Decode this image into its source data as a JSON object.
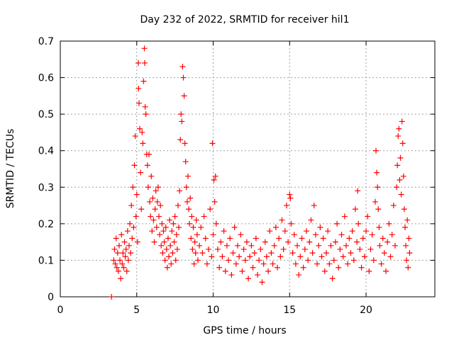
{
  "chart_data": {
    "type": "scatter",
    "title": "Day 232 of 2022, SRMTID for receiver hil1",
    "xlabel": "GPS time / hours",
    "ylabel": "SRMTID / TECUs",
    "xlim": [
      0,
      24.5
    ],
    "ylim": [
      0,
      0.7
    ],
    "x_ticks": [
      0,
      5,
      10,
      15,
      20
    ],
    "x_tick_labels": [
      "0",
      "5",
      "10",
      "15",
      "20"
    ],
    "y_ticks": [
      0,
      0.1,
      0.2,
      0.3,
      0.4,
      0.5,
      0.6,
      0.7
    ],
    "y_tick_labels": [
      "0",
      "0.1",
      "0.2",
      "0.3",
      "0.4",
      "0.5",
      "0.6",
      "0.7"
    ],
    "grid": true,
    "legend": "none",
    "marker": "plus",
    "series": [
      {
        "name": "hil1",
        "color": "#ff0000",
        "note": "representative subset of the plotted points",
        "points": [
          [
            3.35,
            0.0
          ],
          [
            3.5,
            0.1
          ],
          [
            3.55,
            0.13
          ],
          [
            3.6,
            0.09
          ],
          [
            3.65,
            0.16
          ],
          [
            3.7,
            0.08
          ],
          [
            3.75,
            0.12
          ],
          [
            3.8,
            0.07
          ],
          [
            3.85,
            0.14
          ],
          [
            3.9,
            0.1
          ],
          [
            3.95,
            0.05
          ],
          [
            4.0,
            0.17
          ],
          [
            4.05,
            0.09
          ],
          [
            4.1,
            0.12
          ],
          [
            4.15,
            0.08
          ],
          [
            4.2,
            0.15
          ],
          [
            4.25,
            0.11
          ],
          [
            4.3,
            0.13
          ],
          [
            4.35,
            0.07
          ],
          [
            4.4,
            0.18
          ],
          [
            4.45,
            0.1
          ],
          [
            4.5,
            0.14
          ],
          [
            4.55,
            0.2
          ],
          [
            4.6,
            0.12
          ],
          [
            4.65,
            0.25
          ],
          [
            4.7,
            0.16
          ],
          [
            4.75,
            0.3
          ],
          [
            4.8,
            0.19
          ],
          [
            4.85,
            0.36
          ],
          [
            4.9,
            0.44
          ],
          [
            4.95,
            0.22
          ],
          [
            5.0,
            0.28
          ],
          [
            5.05,
            0.15
          ],
          [
            5.1,
            0.64
          ],
          [
            5.12,
            0.57
          ],
          [
            5.15,
            0.53
          ],
          [
            5.2,
            0.46
          ],
          [
            5.25,
            0.34
          ],
          [
            5.3,
            0.24
          ],
          [
            5.35,
            0.45
          ],
          [
            5.4,
            0.42
          ],
          [
            5.45,
            0.59
          ],
          [
            5.5,
            0.68
          ],
          [
            5.52,
            0.64
          ],
          [
            5.55,
            0.52
          ],
          [
            5.6,
            0.5
          ],
          [
            5.65,
            0.39
          ],
          [
            5.7,
            0.36
          ],
          [
            5.75,
            0.3
          ],
          [
            5.8,
            0.39
          ],
          [
            5.85,
            0.26
          ],
          [
            5.9,
            0.22
          ],
          [
            5.95,
            0.33
          ],
          [
            6.0,
            0.18
          ],
          [
            6.05,
            0.27
          ],
          [
            6.1,
            0.21
          ],
          [
            6.15,
            0.15
          ],
          [
            6.2,
            0.24
          ],
          [
            6.25,
            0.29
          ],
          [
            6.3,
            0.19
          ],
          [
            6.35,
            0.26
          ],
          [
            6.4,
            0.3
          ],
          [
            6.45,
            0.22
          ],
          [
            6.5,
            0.17
          ],
          [
            6.55,
            0.25
          ],
          [
            6.6,
            0.14
          ],
          [
            6.65,
            0.2
          ],
          [
            6.7,
            0.12
          ],
          [
            6.75,
            0.18
          ],
          [
            6.8,
            0.15
          ],
          [
            6.85,
            0.1
          ],
          [
            6.9,
            0.19
          ],
          [
            6.95,
            0.13
          ],
          [
            7.0,
            0.08
          ],
          [
            7.05,
            0.16
          ],
          [
            7.1,
            0.11
          ],
          [
            7.15,
            0.21
          ],
          [
            7.2,
            0.14
          ],
          [
            7.25,
            0.09
          ],
          [
            7.3,
            0.18
          ],
          [
            7.35,
            0.12
          ],
          [
            7.4,
            0.2
          ],
          [
            7.45,
            0.15
          ],
          [
            7.5,
            0.22
          ],
          [
            7.55,
            0.1
          ],
          [
            7.6,
            0.17
          ],
          [
            7.65,
            0.13
          ],
          [
            7.7,
            0.25
          ],
          [
            7.75,
            0.19
          ],
          [
            7.8,
            0.29
          ],
          [
            7.85,
            0.43
          ],
          [
            7.9,
            0.5
          ],
          [
            7.95,
            0.48
          ],
          [
            8.0,
            0.63
          ],
          [
            8.05,
            0.6
          ],
          [
            8.1,
            0.55
          ],
          [
            8.15,
            0.42
          ],
          [
            8.2,
            0.37
          ],
          [
            8.25,
            0.3
          ],
          [
            8.3,
            0.26
          ],
          [
            8.35,
            0.33
          ],
          [
            8.4,
            0.24
          ],
          [
            8.45,
            0.2
          ],
          [
            8.5,
            0.27
          ],
          [
            8.55,
            0.16
          ],
          [
            8.6,
            0.22
          ],
          [
            8.65,
            0.13
          ],
          [
            8.7,
            0.19
          ],
          [
            8.75,
            0.09
          ],
          [
            8.8,
            0.15
          ],
          [
            8.85,
            0.12
          ],
          [
            8.9,
            0.21
          ],
          [
            8.95,
            0.17
          ],
          [
            9.0,
            0.1
          ],
          [
            9.1,
            0.14
          ],
          [
            9.2,
            0.19
          ],
          [
            9.3,
            0.12
          ],
          [
            9.4,
            0.22
          ],
          [
            9.5,
            0.16
          ],
          [
            9.6,
            0.09
          ],
          [
            9.7,
            0.13
          ],
          [
            9.8,
            0.24
          ],
          [
            9.9,
            0.11
          ],
          [
            9.95,
            0.42
          ],
          [
            10.0,
            0.17
          ],
          [
            10.05,
            0.32
          ],
          [
            10.1,
            0.26
          ],
          [
            10.15,
            0.33
          ],
          [
            10.2,
            0.2
          ],
          [
            10.3,
            0.13
          ],
          [
            10.4,
            0.08
          ],
          [
            10.5,
            0.15
          ],
          [
            10.6,
            0.11
          ],
          [
            10.7,
            0.18
          ],
          [
            10.8,
            0.07
          ],
          [
            10.9,
            0.14
          ],
          [
            11.0,
            0.1
          ],
          [
            11.1,
            0.16
          ],
          [
            11.2,
            0.06
          ],
          [
            11.3,
            0.12
          ],
          [
            11.4,
            0.19
          ],
          [
            11.5,
            0.09
          ],
          [
            11.6,
            0.14
          ],
          [
            11.7,
            0.11
          ],
          [
            11.8,
            0.17
          ],
          [
            11.9,
            0.07
          ],
          [
            12.0,
            0.13
          ],
          [
            12.1,
            0.1
          ],
          [
            12.2,
            0.15
          ],
          [
            12.3,
            0.05
          ],
          [
            12.4,
            0.11
          ],
          [
            12.5,
            0.14
          ],
          [
            12.6,
            0.08
          ],
          [
            12.7,
            0.12
          ],
          [
            12.8,
            0.16
          ],
          [
            12.9,
            0.06
          ],
          [
            13.0,
            0.1
          ],
          [
            13.1,
            0.13
          ],
          [
            13.2,
            0.04
          ],
          [
            13.3,
            0.09
          ],
          [
            13.4,
            0.15
          ],
          [
            13.5,
            0.11
          ],
          [
            13.6,
            0.07
          ],
          [
            13.7,
            0.18
          ],
          [
            13.8,
            0.12
          ],
          [
            13.9,
            0.09
          ],
          [
            14.0,
            0.14
          ],
          [
            14.1,
            0.19
          ],
          [
            14.2,
            0.08
          ],
          [
            14.3,
            0.16
          ],
          [
            14.4,
            0.11
          ],
          [
            14.5,
            0.21
          ],
          [
            14.6,
            0.13
          ],
          [
            14.7,
            0.18
          ],
          [
            14.8,
            0.25
          ],
          [
            14.9,
            0.15
          ],
          [
            15.0,
            0.28
          ],
          [
            15.05,
            0.27
          ],
          [
            15.1,
            0.2
          ],
          [
            15.2,
            0.12
          ],
          [
            15.3,
            0.17
          ],
          [
            15.4,
            0.09
          ],
          [
            15.5,
            0.14
          ],
          [
            15.6,
            0.06
          ],
          [
            15.7,
            0.11
          ],
          [
            15.8,
            0.16
          ],
          [
            15.9,
            0.08
          ],
          [
            16.0,
            0.13
          ],
          [
            16.1,
            0.18
          ],
          [
            16.2,
            0.1
          ],
          [
            16.3,
            0.15
          ],
          [
            16.4,
            0.21
          ],
          [
            16.5,
            0.12
          ],
          [
            16.6,
            0.25
          ],
          [
            16.7,
            0.17
          ],
          [
            16.8,
            0.09
          ],
          [
            16.9,
            0.14
          ],
          [
            17.0,
            0.19
          ],
          [
            17.1,
            0.11
          ],
          [
            17.2,
            0.16
          ],
          [
            17.3,
            0.07
          ],
          [
            17.4,
            0.12
          ],
          [
            17.5,
            0.18
          ],
          [
            17.6,
            0.09
          ],
          [
            17.7,
            0.14
          ],
          [
            17.8,
            0.05
          ],
          [
            17.9,
            0.1
          ],
          [
            18.0,
            0.15
          ],
          [
            18.1,
            0.2
          ],
          [
            18.2,
            0.08
          ],
          [
            18.3,
            0.13
          ],
          [
            18.4,
            0.17
          ],
          [
            18.5,
            0.11
          ],
          [
            18.6,
            0.22
          ],
          [
            18.7,
            0.14
          ],
          [
            18.8,
            0.09
          ],
          [
            18.9,
            0.16
          ],
          [
            19.0,
            0.12
          ],
          [
            19.1,
            0.18
          ],
          [
            19.2,
            0.1
          ],
          [
            19.3,
            0.24
          ],
          [
            19.4,
            0.15
          ],
          [
            19.45,
            0.29
          ],
          [
            19.5,
            0.2
          ],
          [
            19.6,
            0.13
          ],
          [
            19.7,
            0.08
          ],
          [
            19.8,
            0.16
          ],
          [
            19.9,
            0.11
          ],
          [
            20.0,
            0.18
          ],
          [
            20.1,
            0.22
          ],
          [
            20.2,
            0.07
          ],
          [
            20.3,
            0.13
          ],
          [
            20.4,
            0.17
          ],
          [
            20.5,
            0.1
          ],
          [
            20.6,
            0.26
          ],
          [
            20.65,
            0.4
          ],
          [
            20.7,
            0.34
          ],
          [
            20.75,
            0.3
          ],
          [
            20.8,
            0.24
          ],
          [
            20.85,
            0.19
          ],
          [
            20.9,
            0.14
          ],
          [
            21.0,
            0.09
          ],
          [
            21.1,
            0.16
          ],
          [
            21.2,
            0.12
          ],
          [
            21.3,
            0.07
          ],
          [
            21.4,
            0.15
          ],
          [
            21.5,
            0.2
          ],
          [
            21.6,
            0.11
          ],
          [
            21.7,
            0.17
          ],
          [
            21.8,
            0.25
          ],
          [
            21.9,
            0.14
          ],
          [
            22.0,
            0.3
          ],
          [
            22.05,
            0.36
          ],
          [
            22.1,
            0.44
          ],
          [
            22.15,
            0.46
          ],
          [
            22.2,
            0.32
          ],
          [
            22.25,
            0.38
          ],
          [
            22.3,
            0.28
          ],
          [
            22.35,
            0.48
          ],
          [
            22.4,
            0.42
          ],
          [
            22.45,
            0.33
          ],
          [
            22.5,
            0.24
          ],
          [
            22.55,
            0.19
          ],
          [
            22.6,
            0.14
          ],
          [
            22.65,
            0.1
          ],
          [
            22.7,
            0.21
          ],
          [
            22.75,
            0.08
          ],
          [
            22.8,
            0.16
          ],
          [
            22.85,
            0.12
          ]
        ]
      }
    ]
  }
}
